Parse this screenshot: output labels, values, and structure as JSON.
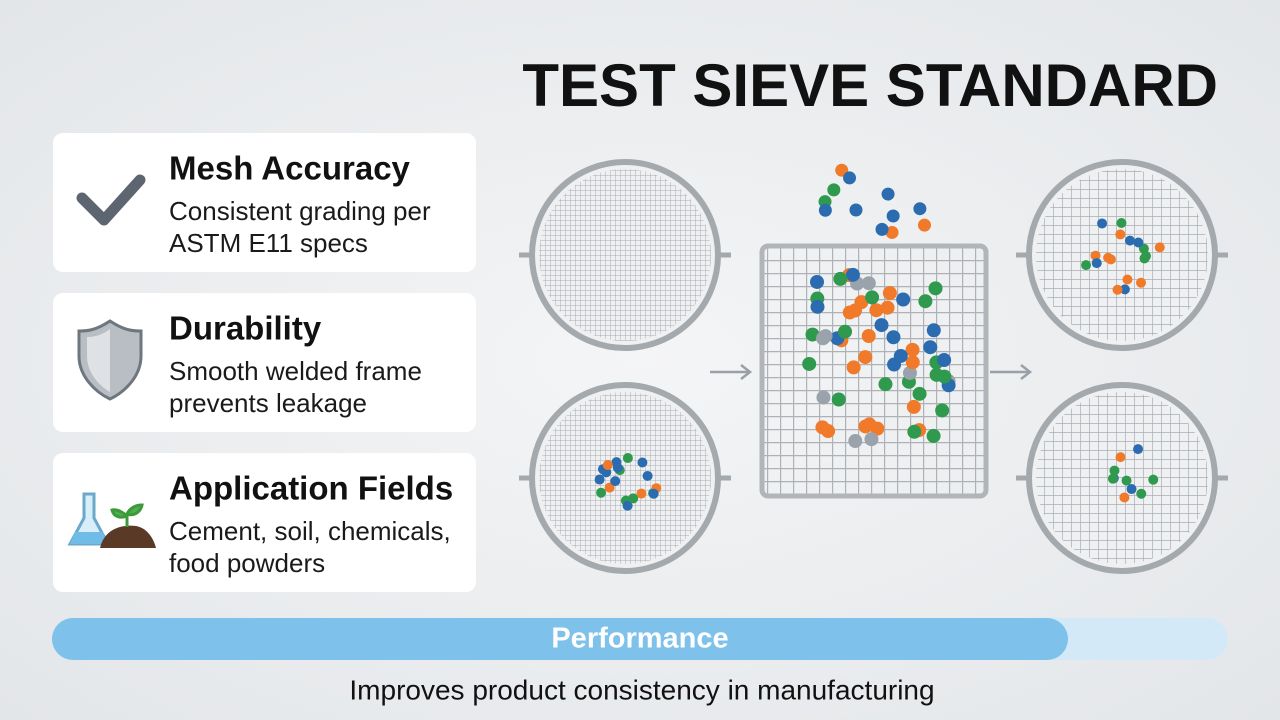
{
  "title": "TEST SIEVE STANDARD",
  "cards": [
    {
      "title": "Mesh Accuracy",
      "description": [
        "Consistent grading per",
        "ASTM E11 specs"
      ]
    },
    {
      "title": "Durability",
      "description": [
        "Smooth welded frame",
        "prevents leakage"
      ]
    },
    {
      "title": "Application Fields",
      "description": [
        "Cement, soil, chemicals,",
        "food powders"
      ]
    }
  ],
  "performance": {
    "label": "Performance"
  },
  "footer": "Improves product consistency in manufacturing"
}
